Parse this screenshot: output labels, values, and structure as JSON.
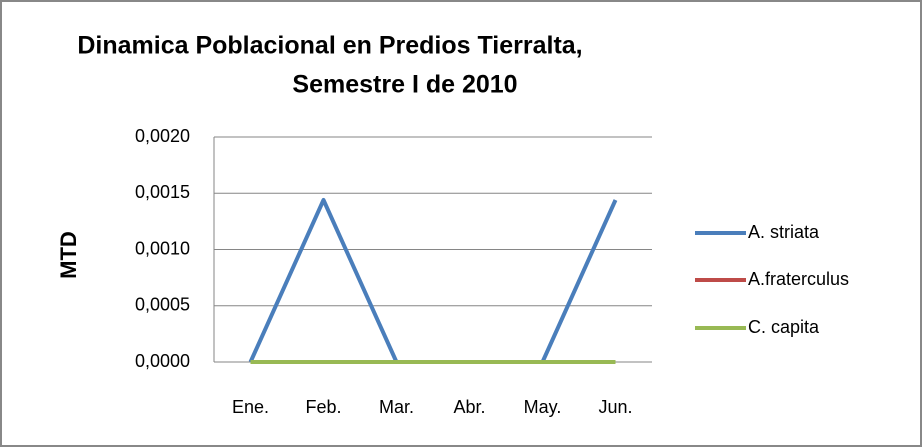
{
  "chart_data": {
    "type": "line",
    "title": [
      "Dinamica Poblacional  en Predios Tierralta,",
      "Semestre I de 2010"
    ],
    "y_label": "MTD",
    "categories": [
      "Ene.",
      "Feb.",
      "Mar.",
      "Abr.",
      "May.",
      "Jun."
    ],
    "series": [
      {
        "name": "A. striata",
        "color": "#4a7ebb",
        "values": [
          0,
          0.00144,
          0,
          0,
          0,
          0.00144
        ]
      },
      {
        "name": "A.fraterculus",
        "color": "#be4b48",
        "values": [
          0,
          0,
          0,
          0,
          0,
          0
        ]
      },
      {
        "name": "C. capita",
        "color": "#98b954",
        "values": [
          0,
          0,
          0,
          0,
          0,
          0
        ]
      }
    ],
    "ylim": [
      0,
      0.002
    ],
    "yticks": [
      {
        "value": 0,
        "label": "0,0000"
      },
      {
        "value": 0.0005,
        "label": "0,0005"
      },
      {
        "value": 0.001,
        "label": "0,0010"
      },
      {
        "value": 0.0015,
        "label": "0,0015"
      },
      {
        "value": 0.002,
        "label": "0,0020"
      }
    ],
    "grid": true,
    "legend": "right"
  }
}
